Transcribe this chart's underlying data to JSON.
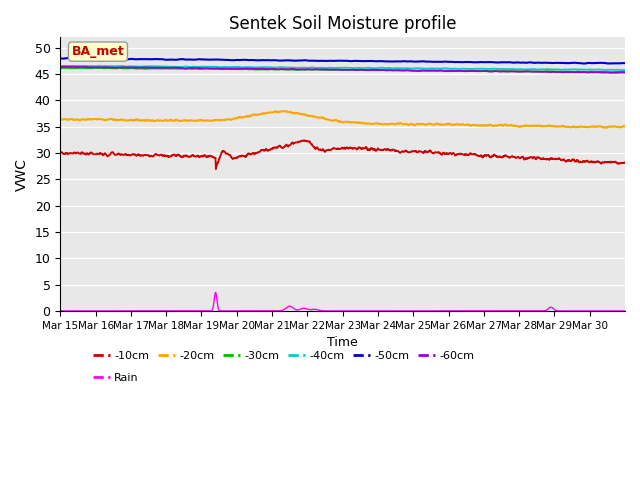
{
  "title": "Sentek Soil Moisture profile",
  "xlabel": "Time",
  "ylabel": "VWC",
  "ylim": [
    0,
    52
  ],
  "yticks": [
    0,
    5,
    10,
    15,
    20,
    25,
    30,
    35,
    40,
    45,
    50
  ],
  "xtick_labels": [
    "Mar 15",
    "Mar 16",
    "Mar 17",
    "Mar 18",
    "Mar 19",
    "Mar 20",
    "Mar 21",
    "Mar 22",
    "Mar 23",
    "Mar 24",
    "Mar 25",
    "Mar 26",
    "Mar 27",
    "Mar 28",
    "Mar 29",
    "Mar 30"
  ],
  "bg_color": "#e8e8e8",
  "series_colors": {
    "-10cm": "#cc0000",
    "-20cm": "#ffa500",
    "-30cm": "#00bb00",
    "-40cm": "#00cccc",
    "-50cm": "#0000cc",
    "-60cm": "#9900cc",
    "Rain": "#ff00ff"
  },
  "annotation_text": "BA_met",
  "annotation_color": "#cc0000",
  "annotation_bg": "#ffffcc"
}
